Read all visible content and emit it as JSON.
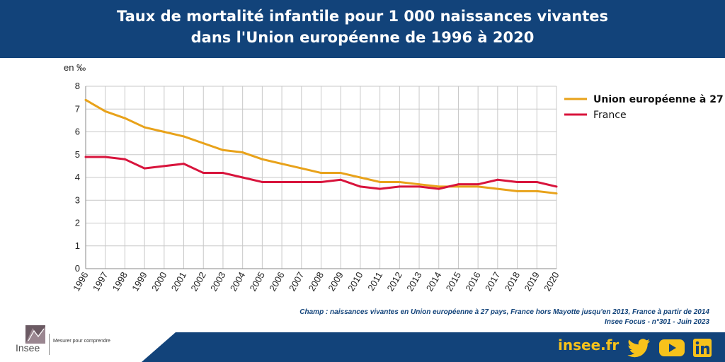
{
  "header": {
    "title_line1": "Taux de mortalité infantile pour 1 000 naissances vivantes",
    "title_line2": "dans l'Union européenne de 1996 à 2020"
  },
  "chart_data": {
    "type": "line",
    "unit_label": "en ‰",
    "x": [
      "1996",
      "1997",
      "1998",
      "1999",
      "2000",
      "2001",
      "2002",
      "2003",
      "2004",
      "2005",
      "2006",
      "2007",
      "2008",
      "2009",
      "2010",
      "2011",
      "2012",
      "2013",
      "2014",
      "2015",
      "2016",
      "2017",
      "2018",
      "2019",
      "2020"
    ],
    "ylim": [
      0,
      8
    ],
    "yticks": [
      "0",
      "1",
      "2",
      "3",
      "4",
      "5",
      "6",
      "7",
      "8"
    ],
    "grid": true,
    "legend_position": "right",
    "series": [
      {
        "name": "Union européenne à 27",
        "color": "#e8a21a",
        "bold": true,
        "values": [
          7.4,
          6.9,
          6.6,
          6.2,
          6.0,
          5.8,
          5.5,
          5.2,
          5.1,
          4.8,
          4.6,
          4.4,
          4.2,
          4.2,
          4.0,
          3.8,
          3.8,
          3.7,
          3.6,
          3.6,
          3.6,
          3.5,
          3.4,
          3.4,
          3.3
        ]
      },
      {
        "name": "France",
        "color": "#d8143c",
        "bold": false,
        "values": [
          4.9,
          4.9,
          4.8,
          4.4,
          4.5,
          4.6,
          4.2,
          4.2,
          4.0,
          3.8,
          3.8,
          3.8,
          3.8,
          3.9,
          3.6,
          3.5,
          3.6,
          3.6,
          3.5,
          3.7,
          3.7,
          3.9,
          3.8,
          3.8,
          3.6
        ]
      }
    ]
  },
  "notes": {
    "champ": "Champ : naissances vivantes en Union européenne à 27 pays, France hors Mayotte jusqu'en 2013, France à partir de 2014",
    "source": "Insee Focus - n°301 - Juin 2023"
  },
  "footer": {
    "logo_name": "Insee",
    "logo_tagline": "Mesurer pour comprendre",
    "site": "insee.fr",
    "icons": [
      "twitter-icon",
      "youtube-icon",
      "linkedin-icon"
    ],
    "colors": {
      "navy": "#12437a",
      "gold": "#f7c21b"
    }
  }
}
